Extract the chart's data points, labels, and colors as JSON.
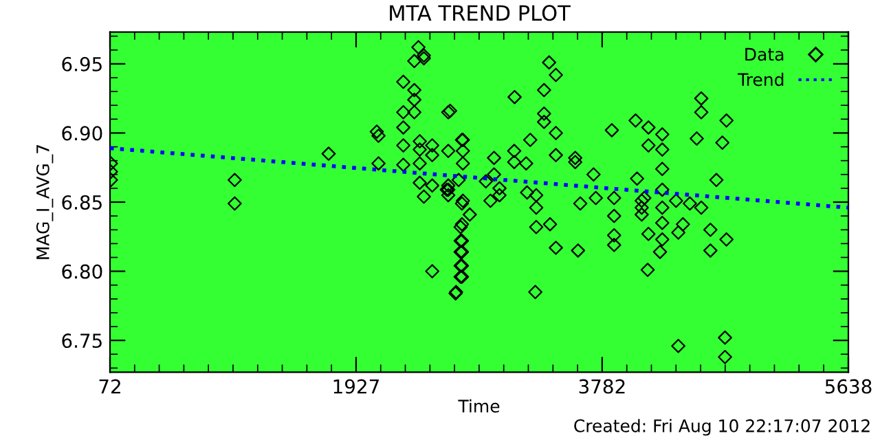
{
  "chart_data": {
    "type": "scatter",
    "title": "MTA TREND PLOT",
    "xlabel": "Time",
    "ylabel": "MAG_I_AVG_7",
    "annotations": [
      "Created: Fri Aug 10 22:17:07 2012"
    ],
    "xlim": [
      72,
      5638
    ],
    "xticks": [
      72,
      1927,
      3782,
      5638
    ],
    "ylim": [
      6.727,
      6.973
    ],
    "yticks": [
      6.75,
      {
        "value": 6.8,
        "label": "6.80"
      },
      6.85,
      {
        "value": 6.9,
        "label": "6.90"
      },
      6.95
    ],
    "grid": false,
    "legend": "top right",
    "series": [
      {
        "name": "Data",
        "marker": "diamond",
        "color": "#000000",
        "x": [
          79,
          79,
          79,
          1012,
          1012,
          1720,
          2083,
          2096,
          2096,
          2283,
          2283,
          2283,
          2283,
          2283,
          2366,
          2366,
          2366,
          2366,
          2397,
          2438,
          2438,
          2407,
          2407,
          2407,
          2407,
          2438,
          2501,
          2501,
          2501,
          2501,
          2622,
          2622,
          2622,
          2622,
          2622,
          2677,
          2700,
          2725,
          2725,
          2725,
          2725,
          2725,
          2725,
          2725,
          2611,
          2636,
          2732,
          2732,
          2732,
          2732,
          2784,
          2715,
          2715,
          2715,
          2715,
          2715,
          2681,
          2905,
          2967,
          2967,
          3008,
          3008,
          2940,
          3122,
          3119,
          3119,
          3209,
          3240,
          3216,
          3285,
          3285,
          3285,
          3278,
          3344,
          3344,
          3344,
          3382,
          3433,
          3433,
          3433,
          3389,
          3433,
          3579,
          3579,
          3617,
          3600,
          3717,
          3734,
          3855,
          3872,
          3872,
          3872,
          3872,
          4034,
          4131,
          4131,
          4235,
          4235,
          4235,
          4045,
          4080,
          4080,
          4080,
          4100,
          4125,
          4131,
          4218,
          4235,
          4235,
          4235,
          4235,
          4356,
          4339,
          4356,
          4391,
          4443,
          4495,
          4529,
          4529,
          4529,
          4598,
          4598,
          4643,
          4688,
          4719,
          4719,
          4708,
          4708
        ],
        "values": [
          6.878,
          6.872,
          6.866,
          6.866,
          6.849,
          6.885,
          6.901,
          6.898,
          6.878,
          6.937,
          6.915,
          6.904,
          6.891,
          6.877,
          6.931,
          6.924,
          6.915,
          6.952,
          6.962,
          6.956,
          6.954,
          6.888,
          6.894,
          6.864,
          6.878,
          6.854,
          6.891,
          6.884,
          6.862,
          6.8,
          6.915,
          6.887,
          6.859,
          6.855,
          6.862,
          6.784,
          6.866,
          6.895,
          6.849,
          6.834,
          6.822,
          6.814,
          6.804,
          6.796,
          6.859,
          6.916,
          6.895,
          6.887,
          6.878,
          6.851,
          6.841,
          6.832,
          6.822,
          6.814,
          6.804,
          6.796,
          6.785,
          6.865,
          6.87,
          6.882,
          6.86,
          6.855,
          6.851,
          6.926,
          6.887,
          6.879,
          6.878,
          6.895,
          6.857,
          6.855,
          6.846,
          6.832,
          6.785,
          6.931,
          6.908,
          6.914,
          6.951,
          6.942,
          6.9,
          6.884,
          6.834,
          6.817,
          6.879,
          6.882,
          6.849,
          6.815,
          6.87,
          6.853,
          6.902,
          6.826,
          6.819,
          6.853,
          6.84,
          6.909,
          6.904,
          6.891,
          6.899,
          6.888,
          6.874,
          6.867,
          6.851,
          6.841,
          6.846,
          6.853,
          6.801,
          6.827,
          6.814,
          6.823,
          6.835,
          6.859,
          6.846,
          6.746,
          6.851,
          6.828,
          6.834,
          6.849,
          6.896,
          6.925,
          6.915,
          6.846,
          6.83,
          6.815,
          6.866,
          6.893,
          6.909,
          6.823,
          6.752,
          6.738
        ]
      },
      {
        "name": "Trend",
        "type": "line",
        "line_style": "dotted",
        "marker": "none",
        "color": "#0000ff",
        "x": [
          72,
          5638
        ],
        "values": [
          6.889,
          6.846
        ]
      }
    ]
  }
}
